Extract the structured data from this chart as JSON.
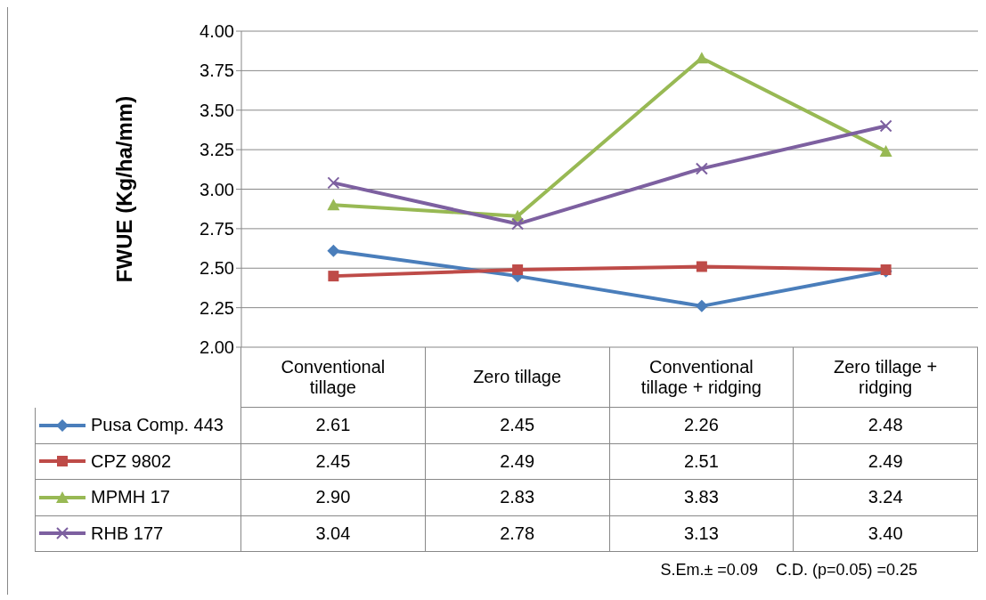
{
  "chart_data": {
    "type": "line",
    "ylabel": "FWUE (Kg/ha/mm)",
    "categories": [
      "Conventional tillage",
      "Zero tillage",
      "Conventional tillage + ridging",
      "Zero tillage + ridging"
    ],
    "series": [
      {
        "name": "Pusa Comp. 443",
        "color": "#4a7ebb",
        "marker": "diamond",
        "values": [
          2.61,
          2.45,
          2.26,
          2.48
        ],
        "value_labels": [
          "2.61",
          "2.45",
          "2.26",
          "2.48"
        ]
      },
      {
        "name": "CPZ 9802",
        "color": "#be4b48",
        "marker": "square",
        "values": [
          2.45,
          2.49,
          2.51,
          2.49
        ],
        "value_labels": [
          "2.45",
          "2.49",
          "2.51",
          "2.49"
        ]
      },
      {
        "name": "MPMH 17",
        "color": "#98b954",
        "marker": "triangle",
        "values": [
          2.9,
          2.83,
          3.83,
          3.24
        ],
        "value_labels": [
          "2.90",
          "2.83",
          "3.83",
          "3.24"
        ]
      },
      {
        "name": "RHB 177",
        "color": "#7d60a0",
        "marker": "cross",
        "values": [
          3.04,
          2.78,
          3.13,
          3.4
        ],
        "value_labels": [
          "3.04",
          "2.78",
          "3.13",
          "3.40"
        ]
      }
    ],
    "ylim": [
      2,
      4
    ],
    "yticks": [
      "2.00",
      "2.25",
      "2.50",
      "2.75",
      "3.00",
      "3.25",
      "3.50",
      "3.75",
      "4.00"
    ],
    "grid": "y",
    "legend": "bottom",
    "line_style": "solid",
    "annotations": [
      "S.Em.± =0.09    C.D. (p=0.05) =0.25"
    ]
  }
}
